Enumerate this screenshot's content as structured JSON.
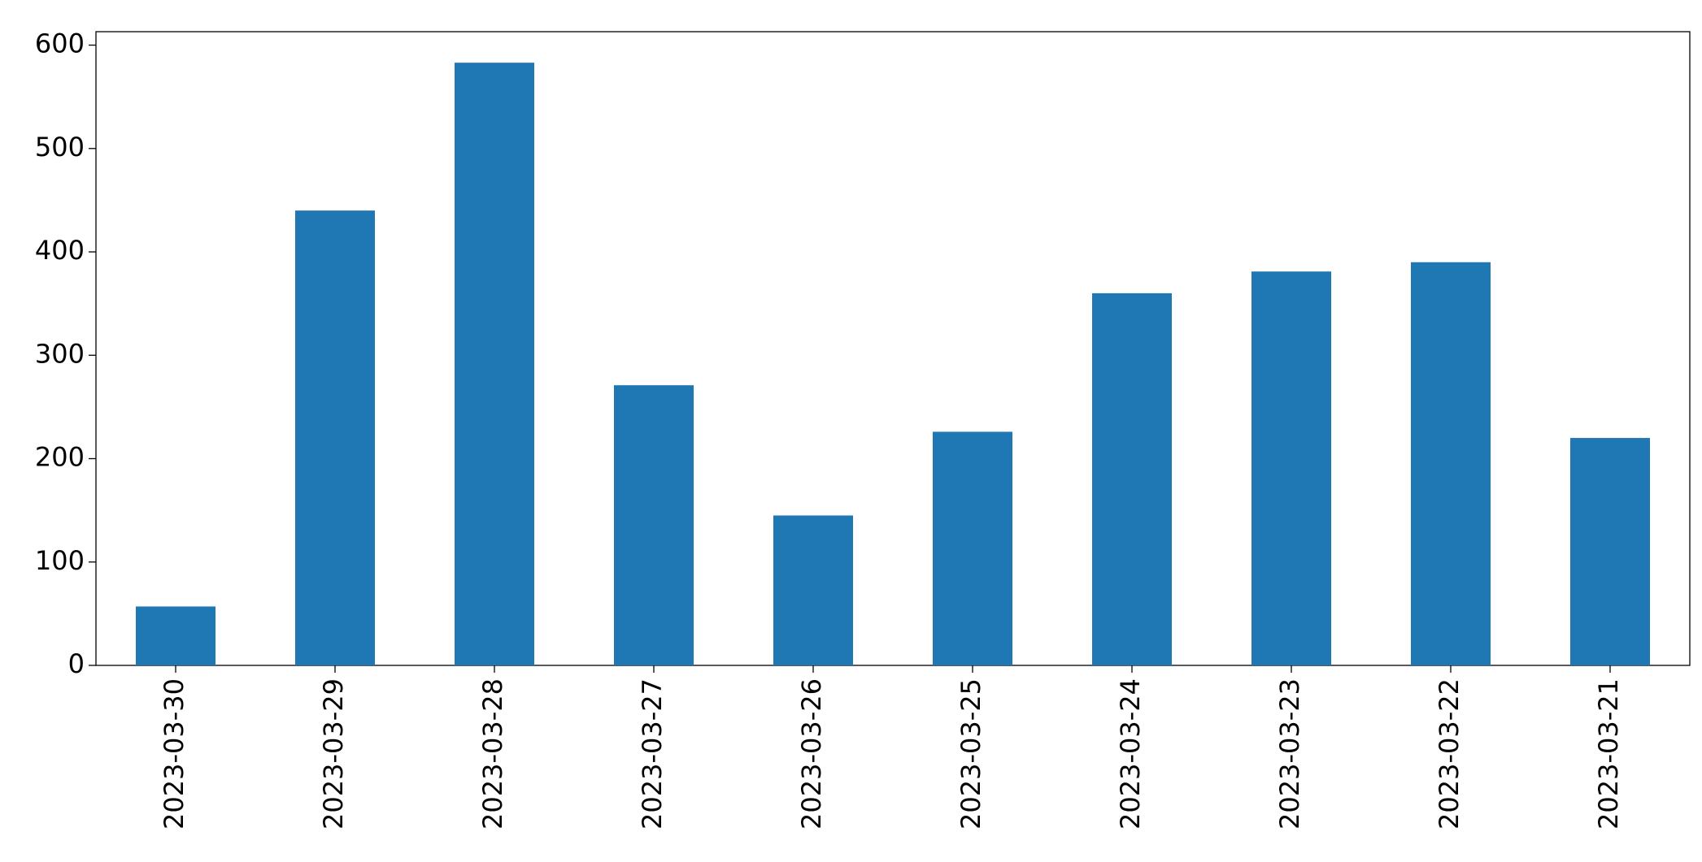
{
  "chart_data": {
    "type": "bar",
    "categories": [
      "2023-03-30",
      "2023-03-29",
      "2023-03-28",
      "2023-03-27",
      "2023-03-26",
      "2023-03-25",
      "2023-03-24",
      "2023-03-23",
      "2023-03-22",
      "2023-03-21"
    ],
    "values": [
      57,
      440,
      583,
      271,
      145,
      226,
      360,
      381,
      390,
      220
    ],
    "color": "#1f77b4",
    "ylim": [
      0,
      613
    ],
    "yticks": [
      0,
      100,
      200,
      300,
      400,
      500,
      600
    ],
    "grid": false
  }
}
